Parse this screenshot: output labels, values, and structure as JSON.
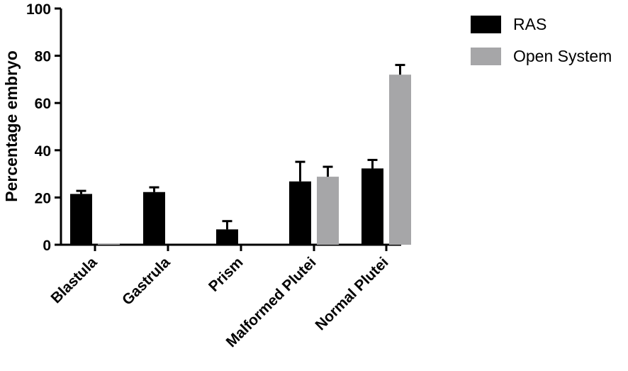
{
  "chart_data": {
    "type": "bar",
    "categories": [
      "Blastula",
      "Gastrula",
      "Prism",
      "Malformed Plutei",
      "Normal Plutei"
    ],
    "series": [
      {
        "name": "RAS",
        "color": "#000000",
        "values": [
          21.5,
          22.3,
          6.5,
          26.8,
          32.3
        ],
        "errors": [
          1.3,
          2.0,
          3.5,
          8.3,
          3.6
        ]
      },
      {
        "name": "Open System",
        "color": "#a6a6a8",
        "values": [
          0.4,
          0,
          0,
          28.8,
          72.0
        ],
        "errors": [
          0,
          0,
          0,
          4.2,
          4.1
        ]
      }
    ],
    "ylabel": "Percentage embryo",
    "xlabel": "",
    "ylim": [
      0,
      100
    ],
    "yticks": [
      0,
      20,
      40,
      60,
      80,
      100
    ],
    "grid": false,
    "legend_position": "top-right"
  }
}
